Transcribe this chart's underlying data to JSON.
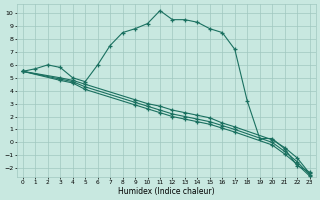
{
  "xlabel": "Humidex (Indice chaleur)",
  "xlim": [
    -0.5,
    23.5
  ],
  "ylim": [
    -2.7,
    10.7
  ],
  "yticks": [
    -2,
    -1,
    0,
    1,
    2,
    3,
    4,
    5,
    6,
    7,
    8,
    9,
    10
  ],
  "xticks": [
    0,
    1,
    2,
    3,
    4,
    5,
    6,
    7,
    8,
    9,
    10,
    11,
    12,
    13,
    14,
    15,
    16,
    17,
    18,
    19,
    20,
    21,
    22,
    23
  ],
  "background_color": "#c8e8e0",
  "grid_color": "#a0c8c0",
  "line_color": "#1a7060",
  "line1_x": [
    0,
    1,
    2,
    3,
    4,
    5,
    6,
    7,
    8,
    9,
    10,
    11,
    12,
    13,
    14,
    15,
    16,
    17,
    18,
    19,
    20,
    21,
    22,
    23
  ],
  "line1_y": [
    5.5,
    5.7,
    6.0,
    5.8,
    5.0,
    4.7,
    6.0,
    7.5,
    8.5,
    8.8,
    9.2,
    10.2,
    9.5,
    9.5,
    9.3,
    8.8,
    8.5,
    7.2,
    3.2,
    0.3,
    0.3,
    -0.5,
    -1.8,
    -2.3
  ],
  "line2_x": [
    0,
    3,
    4,
    5,
    9,
    10,
    11,
    12,
    13,
    14,
    15,
    16,
    17,
    20,
    21,
    22,
    23
  ],
  "line2_y": [
    5.5,
    5.0,
    4.8,
    4.5,
    3.3,
    3.0,
    2.8,
    2.5,
    2.3,
    2.1,
    1.9,
    1.5,
    1.2,
    0.2,
    -0.4,
    -1.2,
    -2.4
  ],
  "line3_x": [
    0,
    3,
    4,
    5,
    9,
    10,
    11,
    12,
    13,
    14,
    15,
    16,
    17,
    20,
    21,
    22,
    23
  ],
  "line3_y": [
    5.5,
    4.9,
    4.7,
    4.3,
    3.1,
    2.8,
    2.5,
    2.2,
    2.0,
    1.8,
    1.6,
    1.3,
    1.0,
    -0.0,
    -0.7,
    -1.5,
    -2.5
  ],
  "line4_x": [
    0,
    3,
    4,
    5,
    9,
    10,
    11,
    12,
    13,
    14,
    15,
    16,
    17,
    20,
    21,
    22,
    23
  ],
  "line4_y": [
    5.5,
    4.8,
    4.6,
    4.1,
    2.9,
    2.6,
    2.3,
    2.0,
    1.8,
    1.6,
    1.4,
    1.1,
    0.8,
    -0.2,
    -0.9,
    -1.7,
    -2.6
  ]
}
